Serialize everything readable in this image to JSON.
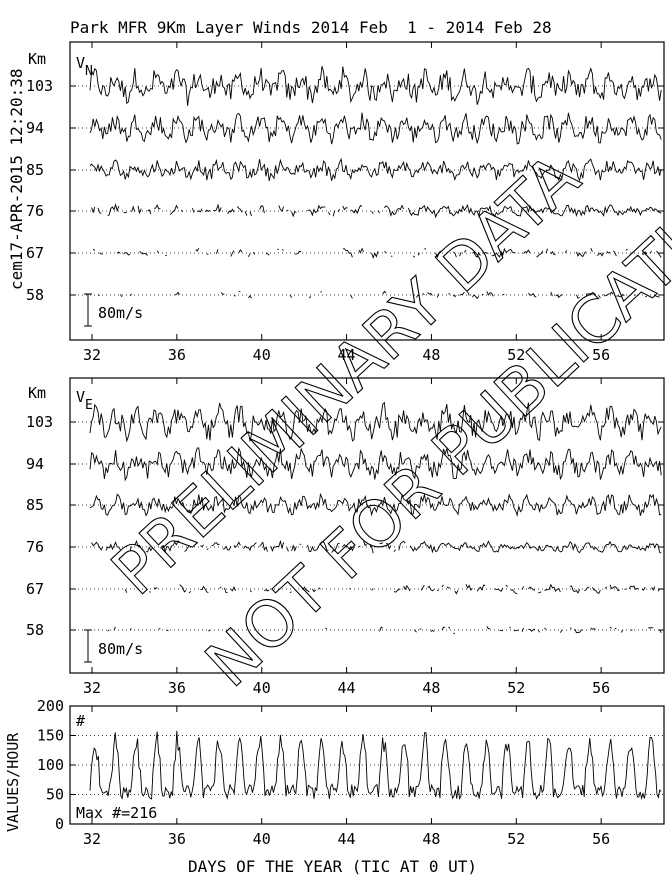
{
  "header": {
    "title": "Park MFR 9Km Layer Winds 2014 Feb  1 - 2014 Feb 28",
    "stamp": "cem17-APR-2015 12:20:38"
  },
  "watermark": {
    "line1": "PRELIMINARY DATA",
    "line2": "NOT FOR PUBLICATION"
  },
  "chart_data": [
    {
      "type": "line",
      "component": "VN",
      "label_main": "V",
      "label_sub": "N",
      "unit": "Km",
      "heights": [
        "103",
        "94",
        "85",
        "76",
        "67",
        "58"
      ],
      "scale_label": "80m/s",
      "x_ticks": [
        "32",
        "36",
        "40",
        "44",
        "48",
        "52",
        "56"
      ],
      "xlim": [
        32,
        60
      ],
      "grid": "dotted baseline per height"
    },
    {
      "type": "line",
      "component": "VE",
      "label_main": "V",
      "label_sub": "E",
      "unit": "Km",
      "heights": [
        "103",
        "94",
        "85",
        "76",
        "67",
        "58"
      ],
      "scale_label": "80m/s",
      "x_ticks": [
        "32",
        "36",
        "40",
        "44",
        "48",
        "52",
        "56"
      ],
      "xlim": [
        32,
        60
      ],
      "grid": "dotted baseline per height"
    },
    {
      "type": "line",
      "component": "count",
      "ylabel": "VALUES/HOUR",
      "y_ticks": [
        "200",
        "150",
        "100",
        "50",
        "0"
      ],
      "ylim": [
        0,
        200
      ],
      "marker_label": "#",
      "max_label": "Max #=216",
      "x_ticks": [
        "32",
        "36",
        "40",
        "44",
        "48",
        "52",
        "56"
      ],
      "xlabel": "DAYS OF THE YEAR (TIC AT 0 UT)",
      "xlim": [
        32,
        60
      ],
      "grid": "dotted at 50, 100, 150"
    }
  ]
}
